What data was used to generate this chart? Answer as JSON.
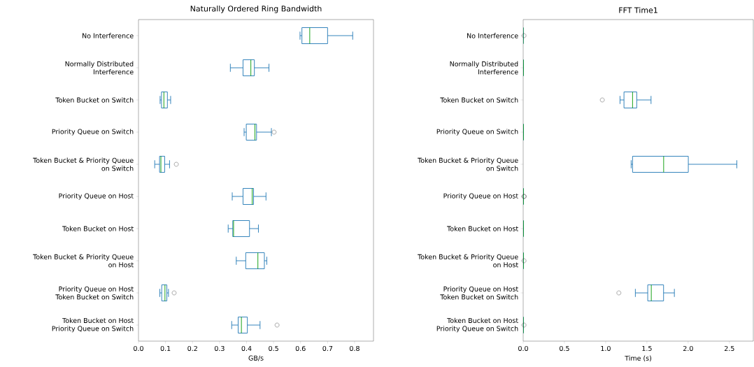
{
  "chart_data": [
    {
      "type": "box",
      "orientation": "horizontal",
      "title": "Naturally Ordered Ring Bandwidth",
      "xlabel": "GB/s",
      "color": "#1f77b4",
      "categories": [
        "No Interference",
        "Normally Distributed\nInterference",
        "Token Bucket on Switch",
        "Priority Queue on Switch",
        "Token Bucket & Priority Queue\non Switch",
        "Priority Queue on Host",
        "Token Bucket on Host",
        "Token Bucket & Priority Queue\non Host",
        "Priority Queue on Host\nToken Bucket on Switch",
        "Token Bucket on Host\nPriority Queue on Switch"
      ],
      "boxes": [
        {
          "low": 0.598,
          "q1": 0.605,
          "median": 0.634,
          "q3": 0.7,
          "high": 0.793
        },
        {
          "low": 0.34,
          "q1": 0.387,
          "median": 0.416,
          "q3": 0.429,
          "high": 0.483
        },
        {
          "low": 0.08,
          "q1": 0.085,
          "median": 0.094,
          "q3": 0.107,
          "high": 0.119
        },
        {
          "low": 0.391,
          "q1": 0.399,
          "median": 0.431,
          "q3": 0.437,
          "high": 0.492,
          "outliers": [
            0.502
          ]
        },
        {
          "low": 0.06,
          "q1": 0.078,
          "median": 0.083,
          "q3": 0.097,
          "high": 0.115,
          "outliers": [
            0.14
          ]
        },
        {
          "low": 0.347,
          "q1": 0.387,
          "median": 0.421,
          "q3": 0.426,
          "high": 0.472
        },
        {
          "low": 0.332,
          "q1": 0.349,
          "median": 0.352,
          "q3": 0.411,
          "high": 0.444
        },
        {
          "low": 0.362,
          "q1": 0.397,
          "median": 0.442,
          "q3": 0.466,
          "high": 0.475
        },
        {
          "low": 0.079,
          "q1": 0.086,
          "median": 0.098,
          "q3": 0.105,
          "high": 0.111,
          "outliers": [
            0.132
          ]
        },
        {
          "low": 0.345,
          "q1": 0.369,
          "median": 0.381,
          "q3": 0.403,
          "high": 0.45,
          "outliers": [
            0.513
          ]
        }
      ],
      "xlim": [
        0,
        0.87
      ],
      "xticks": [
        {
          "value": 0,
          "label": "0.0"
        },
        0.1,
        0.2,
        0.3,
        0.4,
        0.5,
        0.6,
        0.7,
        0.8
      ]
    },
    {
      "type": "box",
      "orientation": "horizontal",
      "title": "FFT Time1",
      "xlabel": "Time (s)",
      "color": "#1f77b4",
      "categories": [
        "No Interference",
        "Normally Distributed\nInterference",
        "Token Bucket on Switch",
        "Priority Queue on Switch",
        "Token Bucket & Priority Queue\non Switch",
        "Priority Queue on Host",
        "Token Bucket on Host",
        "Token Bucket & Priority Queue\non Host",
        "Priority Queue on Host\nToken Bucket on Switch",
        "Token Bucket on Host\nPriority Queue on Switch"
      ],
      "boxes": [
        {
          "low": 0,
          "q1": 0,
          "median": 0,
          "q3": 0,
          "high": 0,
          "outliers": [
            0.01
          ]
        },
        {
          "low": 0,
          "q1": 0.001,
          "median": 0.002,
          "q3": 0.003,
          "high": 0.004
        },
        {
          "low": 1.174,
          "q1": 1.222,
          "median": 1.326,
          "q3": 1.377,
          "high": 1.55,
          "outliers": [
            0.959
          ]
        },
        {
          "low": 0,
          "q1": 0.001,
          "median": 0.002,
          "q3": 0.003,
          "high": 0.004
        },
        {
          "low": 1.309,
          "q1": 1.326,
          "median": 1.703,
          "q3": 2.002,
          "high": 2.59
        },
        {
          "low": 0,
          "q1": 0.001,
          "median": 0.002,
          "q3": 0.003,
          "high": 0.004,
          "outliers": [
            0.01,
            0.012
          ]
        },
        {
          "low": 0,
          "q1": 0.001,
          "median": 0.002,
          "q3": 0.003,
          "high": 0.004
        },
        {
          "low": 0,
          "q1": 0.001,
          "median": 0.002,
          "q3": 0.003,
          "high": 0.004,
          "outliers": [
            0.01
          ]
        },
        {
          "low": 1.36,
          "q1": 1.51,
          "median": 1.553,
          "q3": 1.702,
          "high": 1.833,
          "outliers": [
            1.16
          ]
        },
        {
          "low": 0,
          "q1": 0.001,
          "median": 0.001,
          "q3": 0.002,
          "high": 0.003,
          "outliers": [
            0.01
          ]
        }
      ],
      "xlim": [
        0,
        2.79
      ],
      "xticks": [
        {
          "value": 0,
          "label": "0.0"
        },
        0.5,
        {
          "value": 1,
          "label": "1.0"
        },
        1.5,
        {
          "value": 2,
          "label": "2.0"
        },
        2.5
      ]
    }
  ]
}
